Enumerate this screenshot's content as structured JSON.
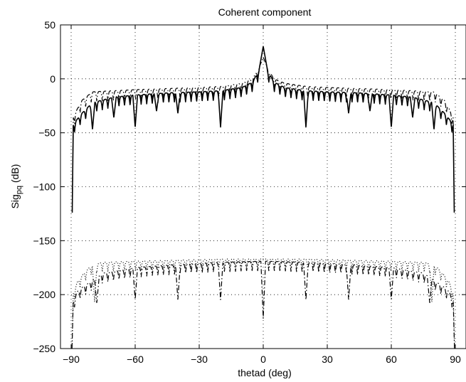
{
  "chart_data": {
    "type": "line",
    "title": "Coherent component",
    "xlabel": "thetad (deg)",
    "ylabel": "Sig",
    "ylabel_subscript": "pq",
    "ylabel_unit": " (dB)",
    "xlim": [
      -95,
      95
    ],
    "ylim": [
      -250,
      50
    ],
    "xticks": [
      -90,
      -60,
      -30,
      0,
      30,
      60,
      90
    ],
    "yticks": [
      50,
      0,
      -50,
      -100,
      -150,
      -200,
      -250
    ],
    "xtick_labels": [
      "−90",
      "−60",
      "−30",
      "0",
      "30",
      "60",
      "90"
    ],
    "ytick_labels": [
      "50",
      "0",
      "−50",
      "−100",
      "−150",
      "−200",
      "−250"
    ],
    "grid": true,
    "grid_style": "dotted",
    "series": [
      {
        "style": "solid",
        "envelope": {
          "x": [
            -89.5,
            -89,
            -85,
            -80,
            -70,
            -60,
            -45,
            -30,
            -20,
            -10,
            -5,
            -2,
            0,
            2,
            5,
            10,
            20,
            30,
            45,
            60,
            70,
            80,
            85,
            89,
            89.5
          ],
          "y": [
            -124,
            -42,
            -32,
            -22,
            -17,
            -15,
            -13,
            -12,
            -11,
            -8,
            -3,
            8,
            30,
            8,
            -3,
            -8,
            -11,
            -12,
            -13,
            -15,
            -17,
            -22,
            -32,
            -42,
            -124
          ]
        },
        "nulls": [
          {
            "x": -80,
            "y": -47
          },
          {
            "x": -70,
            "y": -36
          },
          {
            "x": -60,
            "y": -45
          },
          {
            "x": -50,
            "y": -30
          },
          {
            "x": -40,
            "y": -32
          },
          {
            "x": -20,
            "y": -45
          },
          {
            "x": 20,
            "y": -45
          },
          {
            "x": 40,
            "y": -32
          },
          {
            "x": 50,
            "y": -30
          },
          {
            "x": 60,
            "y": -45
          },
          {
            "x": 70,
            "y": -36
          },
          {
            "x": 80,
            "y": -47
          }
        ]
      },
      {
        "style": "dashdot",
        "envelope": {
          "x": [
            -89.5,
            -89,
            -85,
            -80,
            -70,
            -60,
            -45,
            -30,
            -20,
            -10,
            -5,
            -2,
            0,
            2,
            5,
            10,
            20,
            30,
            45,
            60,
            70,
            80,
            85,
            89,
            89.5
          ],
          "y": [
            -124,
            -35,
            -20,
            -12,
            -11,
            -10,
            -9,
            -8,
            -7,
            -4,
            0,
            10,
            20,
            10,
            0,
            -4,
            -7,
            -8,
            -9,
            -10,
            -11,
            -12,
            -20,
            -35,
            -124
          ]
        },
        "nulls": []
      },
      {
        "style": "dashdot",
        "envelope": {
          "x": [
            -89.6,
            -89,
            -87,
            -84,
            -80,
            -75,
            -60,
            -40,
            -20,
            0,
            20,
            40,
            60,
            75,
            80,
            84,
            87,
            89,
            89.6
          ],
          "y": [
            -250,
            -205,
            -197,
            -192,
            -187,
            -180,
            -175,
            -172,
            -170,
            -169,
            -170,
            -172,
            -175,
            -180,
            -187,
            -192,
            -197,
            -205,
            -250
          ]
        },
        "nulls": [
          {
            "x": -78,
            "y": -208
          },
          {
            "x": -60,
            "y": -205
          },
          {
            "x": -40,
            "y": -205
          },
          {
            "x": -20,
            "y": -205
          },
          {
            "x": 0,
            "y": -222
          },
          {
            "x": 20,
            "y": -205
          },
          {
            "x": 40,
            "y": -205
          },
          {
            "x": 60,
            "y": -205
          },
          {
            "x": 78,
            "y": -208
          }
        ]
      },
      {
        "style": "dotted",
        "envelope": {
          "x": [
            -89.6,
            -89,
            -87,
            -84,
            -80,
            -75,
            -60,
            -40,
            -20,
            0,
            20,
            40,
            60,
            75,
            80,
            84,
            87,
            89,
            89.6
          ],
          "y": [
            -250,
            -198,
            -188,
            -180,
            -172,
            -170,
            -169,
            -168,
            -167,
            -167,
            -167,
            -168,
            -169,
            -170,
            -172,
            -180,
            -188,
            -198,
            -250
          ]
        },
        "nulls": [
          {
            "x": -79,
            "y": -207
          },
          {
            "x": 79,
            "y": -207
          }
        ]
      }
    ]
  }
}
